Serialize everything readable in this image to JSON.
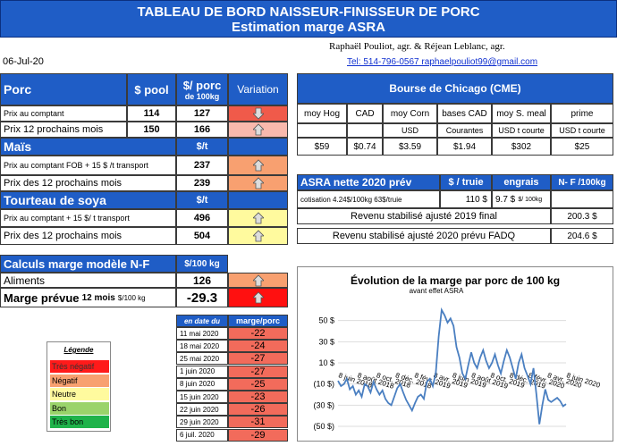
{
  "header": {
    "title_line1": "TABLEAU DE BORD NAISSEUR-FINISSEUR DE PORC",
    "title_line2": "Estimation marge ASRA"
  },
  "date": "06-Jul-20",
  "authors": {
    "names": "Raphaël Pouliot, agr.    &    Réjean Leblanc, agr.",
    "contact": "Tel:     514-796-0567    raphaelpouliot99@gmail.com"
  },
  "porc": {
    "label": "Porc",
    "col_pool": "$ pool",
    "col_porc": "$/ porc",
    "col_porc_sub": "de 100kg",
    "col_var": "Variation",
    "rows": [
      {
        "label": "Prix au comptant",
        "pool": "114",
        "porc": "127"
      },
      {
        "label": "Prix 12 prochains mois",
        "pool": "150",
        "porc": "166"
      }
    ]
  },
  "mais": {
    "label": "Maïs",
    "unit": "$/t",
    "rows": [
      {
        "label": "Prix au comptant  FOB + 15 $ /t transport",
        "value": "237"
      },
      {
        "label": "Prix des 12 prochains mois",
        "value": "239"
      }
    ]
  },
  "soya": {
    "label": "Tourteau de soya",
    "unit": "$/t",
    "rows": [
      {
        "label": "Prix au comptant  + 15 $/ t  transport",
        "value": "496"
      },
      {
        "label": "Prix des 12 prochains mois",
        "value": "504"
      }
    ]
  },
  "calculs": {
    "label": "Calculs marge  modèle N-F",
    "unit": "$/100 kg",
    "aliments_label": "Aliments",
    "aliments_value": "126",
    "marge_label": "Marge prévue",
    "marge_sub": "12 mois",
    "marge_unit": "$/100 kg",
    "marge_value": "-29.3"
  },
  "history": {
    "col_date": "en date du",
    "col_marge": "marge/porc",
    "rows": [
      {
        "date": "11 mai 2020",
        "value": "-22"
      },
      {
        "date": "18 mai 2020",
        "value": "-24"
      },
      {
        "date": "25 mai 2020",
        "value": "-27"
      },
      {
        "date": "1 juin 2020",
        "value": "-27"
      },
      {
        "date": "8 juin 2020",
        "value": "-25"
      },
      {
        "date": "15 juin 2020",
        "value": "-23"
      },
      {
        "date": "22 juin 2020",
        "value": "-26"
      },
      {
        "date": "29 juin 2020",
        "value": "-31"
      },
      {
        "date": "6 juil. 2020",
        "value": "-29"
      }
    ]
  },
  "legend": {
    "title": "Légende",
    "items": [
      {
        "label": "Très négatif",
        "color": "#ff1a1a"
      },
      {
        "label": "Négatif",
        "color": "#f8a070"
      },
      {
        "label": "Neutre",
        "color": "#fffa9e"
      },
      {
        "label": "Bon",
        "color": "#9ad36a"
      },
      {
        "label": "Très bon",
        "color": "#1fb34a"
      }
    ]
  },
  "cme": {
    "title": "Bourse de Chicago (CME)",
    "headers": [
      "moy Hog",
      "CAD",
      "moy Corn",
      "bases CAD",
      "moy S. meal",
      "prime"
    ],
    "units": [
      "",
      "",
      "USD",
      "Courantes",
      "USD t courte",
      "USD t courte"
    ],
    "values": [
      "$59",
      "$0.74",
      "$3.59",
      "$1.94",
      "$302",
      "$25"
    ]
  },
  "asra": {
    "title": "ASRA nette 2020 prév",
    "col_truie": "$ / truie",
    "col_engrais": "engrais",
    "col_nf": "N- F /100kg",
    "cotisation_label": "cotisation 4.24$/100kg  63$/truie",
    "truie_value": "110  $",
    "engrais_value": "9.7  $",
    "engrais_unit": "$/ 100kg",
    "revenu2019_label": "Revenu stabilisé ajusté 2019 final",
    "revenu2019_value": "200.3 $",
    "revenu2020_label": "Revenu stabilisé ajusté 2020 prévu FADQ",
    "revenu2020_value": "204.6 $"
  },
  "chart_data": {
    "type": "line",
    "title": "Évolution de la marge par porc de 100 kg",
    "subtitle": "avant effet ASRA",
    "ylim": [
      -50,
      70
    ],
    "yticks": [
      "50 $",
      "30 $",
      "10 $",
      "(10 $)",
      "(30 $)",
      "(50 $)"
    ],
    "ytick_values": [
      50,
      30,
      10,
      -10,
      -30,
      -50
    ],
    "xticks": [
      "8 juin 2018",
      "8 août 2018",
      "8 oct. 2018",
      "8 déc. 2018",
      "8 févr. 2019",
      "8 avr. 2019",
      "8 juin 2019",
      "8 août 2019",
      "8 oct. 2019",
      "8 déc. 2019",
      "8 févr. 2020",
      "8 avr. 2020",
      "8 juin 2020"
    ],
    "series": [
      {
        "values": [
          -7,
          -12,
          -10,
          -5,
          -15,
          -12,
          -20,
          -16,
          -22,
          -10,
          -12,
          -18,
          -8,
          -15,
          -20,
          -16,
          -24,
          -28,
          -30,
          -22,
          -14,
          -10,
          -18,
          -25,
          -30,
          -35,
          -28,
          -22,
          -20,
          -24,
          -8,
          -5,
          -12,
          0,
          35,
          60,
          55,
          48,
          52,
          45,
          25,
          15,
          0,
          -5,
          8,
          20,
          10,
          5,
          15,
          22,
          12,
          5,
          10,
          18,
          8,
          0,
          12,
          22,
          15,
          5,
          -5,
          10,
          18,
          5,
          -2,
          -10,
          5,
          -20,
          -48,
          -30,
          -15,
          -25,
          -27,
          -25,
          -23,
          -26,
          -31,
          -29
        ]
      }
    ]
  }
}
